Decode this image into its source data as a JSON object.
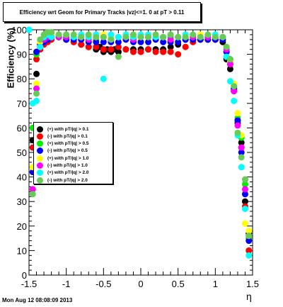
{
  "chart_data": {
    "type": "scatter",
    "title": "Efficiency wrt Geom for Primary Tracks |vz|<=1. 0 at pT > 0.11",
    "xlabel": "η",
    "ylabel": "Efficiency (%)",
    "xlim": [
      -1.5,
      1.5
    ],
    "ylim": [
      0,
      100
    ],
    "x_ticks": [
      -1.5,
      -1,
      -0.5,
      0,
      0.5,
      1,
      1.5
    ],
    "y_ticks": [
      0,
      10,
      20,
      30,
      40,
      50,
      60,
      70,
      80,
      90,
      100
    ],
    "legend_position": "middle-left",
    "series": [
      {
        "name": "(+) with pT/|q| > 0.1",
        "color": "#000000",
        "x": [
          -1.45,
          -1.4,
          -1.35,
          -1.3,
          -1.25,
          -1.2,
          -1.1,
          -1.0,
          -0.9,
          -0.8,
          -0.7,
          -0.6,
          -0.55,
          -0.5,
          -0.45,
          -0.4,
          -0.35,
          -0.3,
          -0.2,
          -0.1,
          0.0,
          0.1,
          0.2,
          0.3,
          0.4,
          0.5,
          0.6,
          0.7,
          0.8,
          0.9,
          1.0,
          1.1,
          1.15,
          1.2,
          1.25,
          1.3,
          1.35,
          1.4,
          1.45
        ],
        "y": [
          55,
          82,
          94,
          96,
          97,
          98,
          97,
          96,
          95,
          94,
          93,
          92,
          93,
          91,
          92,
          91,
          92,
          91,
          92,
          92,
          92,
          92,
          92,
          92,
          93,
          94,
          96,
          96,
          96,
          96,
          96,
          95,
          88,
          84,
          75,
          62,
          54,
          30,
          17
        ]
      },
      {
        "name": "(-) with pT/|q| > 0.1",
        "color": "#ff0000",
        "x": [
          -1.45,
          -1.4,
          -1.35,
          -1.3,
          -1.25,
          -1.2,
          -1.1,
          -1.0,
          -0.9,
          -0.8,
          -0.7,
          -0.6,
          -0.5,
          -0.4,
          -0.3,
          -0.2,
          -0.1,
          0.0,
          0.1,
          0.2,
          0.3,
          0.4,
          0.5,
          0.6,
          0.7,
          0.8,
          0.9,
          1.0,
          1.1,
          1.15,
          1.2,
          1.25,
          1.3,
          1.35,
          1.4,
          1.45
        ],
        "y": [
          52,
          88,
          92,
          94,
          95,
          96,
          97,
          96,
          95,
          94,
          93,
          93,
          92,
          92,
          93,
          92,
          91,
          91,
          92,
          91,
          91,
          91,
          90,
          93,
          95,
          96,
          96,
          96,
          96,
          91,
          86,
          76,
          63,
          52,
          28,
          10
        ]
      },
      {
        "name": "(+) with pT/|q| > 0.5",
        "color": "#00ee00",
        "x": [
          -1.45,
          -1.4,
          -1.35,
          -1.3,
          -1.25,
          -1.2,
          -1.1,
          -1.0,
          -0.9,
          -0.8,
          -0.7,
          -0.6,
          -0.5,
          -0.4,
          -0.3,
          -0.2,
          -0.1,
          0.0,
          0.1,
          0.2,
          0.3,
          0.4,
          0.5,
          0.6,
          0.7,
          0.8,
          0.9,
          1.0,
          1.1,
          1.15,
          1.2,
          1.25,
          1.3,
          1.35,
          1.4,
          1.45
        ],
        "y": [
          60,
          90,
          95,
          97,
          98,
          98,
          98,
          97,
          97,
          97,
          97,
          96,
          97,
          96,
          97,
          97,
          97,
          97,
          97,
          97,
          97,
          97,
          97,
          97,
          97,
          97,
          97,
          97,
          97,
          93,
          88,
          77,
          64,
          56,
          37,
          15
        ]
      },
      {
        "name": "(-) with pT/|q| > 0.5",
        "color": "#0000ff",
        "x": [
          -1.45,
          -1.4,
          -1.35,
          -1.3,
          -1.25,
          -1.2,
          -1.1,
          -1.0,
          -0.9,
          -0.8,
          -0.7,
          -0.6,
          -0.5,
          -0.4,
          -0.3,
          -0.2,
          -0.1,
          0.0,
          0.1,
          0.2,
          0.3,
          0.4,
          0.5,
          0.6,
          0.7,
          0.8,
          0.9,
          1.0,
          1.1,
          1.15,
          1.2,
          1.25,
          1.3,
          1.35,
          1.4,
          1.45
        ],
        "y": [
          42,
          91,
          93,
          95,
          96,
          97,
          97,
          96,
          96,
          96,
          95,
          95,
          95,
          95,
          95,
          96,
          95,
          95,
          95,
          96,
          95,
          95,
          95,
          96,
          96,
          96,
          96,
          96,
          96,
          91,
          87,
          76,
          63,
          50,
          33,
          14
        ]
      },
      {
        "name": "(+) with pT/|q| > 1.0",
        "color": "#ffff00",
        "x": [
          -1.45,
          -1.4,
          -1.35,
          -1.3,
          -1.25,
          -1.2,
          -1.1,
          -1.0,
          -0.9,
          -0.8,
          -0.7,
          -0.6,
          -0.5,
          -0.4,
          -0.3,
          -0.2,
          -0.1,
          0.0,
          0.1,
          0.2,
          0.3,
          0.4,
          0.5,
          0.6,
          0.7,
          0.8,
          0.9,
          1.0,
          1.1,
          1.15,
          1.2,
          1.25,
          1.3,
          1.35,
          1.4,
          1.45
        ],
        "y": [
          44,
          78,
          95,
          97,
          98,
          98,
          98,
          98,
          98,
          97,
          98,
          97,
          98,
          97,
          97,
          98,
          98,
          97,
          97,
          98,
          97,
          98,
          97,
          98,
          97,
          98,
          97,
          98,
          97,
          93,
          87,
          78,
          66,
          57,
          21,
          18
        ]
      },
      {
        "name": "(-) with pT/|q| > 1.0",
        "color": "#ff00ff",
        "x": [
          -1.45,
          -1.4,
          -1.35,
          -1.3,
          -1.25,
          -1.2,
          -1.1,
          -1.0,
          -0.9,
          -0.8,
          -0.7,
          -0.6,
          -0.5,
          -0.4,
          -0.3,
          -0.2,
          -0.1,
          0.0,
          0.1,
          0.2,
          0.3,
          0.4,
          0.5,
          0.6,
          0.7,
          0.8,
          0.9,
          1.0,
          1.1,
          1.15,
          1.2,
          1.25,
          1.3,
          1.35,
          1.4,
          1.45
        ],
        "y": [
          35,
          76,
          93,
          96,
          97,
          97,
          97,
          97,
          97,
          97,
          96,
          97,
          97,
          96,
          97,
          97,
          96,
          97,
          97,
          97,
          97,
          96,
          97,
          97,
          97,
          97,
          97,
          97,
          97,
          92,
          86,
          75,
          61,
          52,
          35,
          16
        ]
      },
      {
        "name": "(+) with pT/|q| > 2.0",
        "color": "#00ffff",
        "x": [
          -1.5,
          -1.45,
          -1.4,
          -1.35,
          -1.3,
          -1.25,
          -1.2,
          -1.1,
          -1.0,
          -0.9,
          -0.8,
          -0.7,
          -0.6,
          -0.5,
          -0.4,
          -0.3,
          -0.2,
          -0.1,
          0.0,
          0.1,
          0.2,
          0.3,
          0.4,
          0.5,
          0.6,
          0.7,
          0.8,
          0.9,
          1.0,
          1.1,
          1.15,
          1.2,
          1.25,
          1.3,
          1.35,
          1.4,
          1.45
        ],
        "y": [
          100,
          70,
          71,
          93,
          97,
          98,
          97,
          98,
          98,
          97,
          98,
          97,
          98,
          80,
          98,
          97,
          98,
          97,
          98,
          98,
          97,
          97,
          98,
          97,
          98,
          98,
          97,
          98,
          98,
          97,
          89,
          79,
          71,
          57,
          44,
          27,
          8
        ]
      },
      {
        "name": "(-) with pT/|q| > 2.0",
        "color": "#66cc55",
        "x": [
          -1.45,
          -1.4,
          -1.35,
          -1.3,
          -1.25,
          -1.2,
          -1.1,
          -1.0,
          -0.9,
          -0.8,
          -0.7,
          -0.6,
          -0.5,
          -0.4,
          -0.3,
          -0.2,
          -0.1,
          0.0,
          0.1,
          0.2,
          0.3,
          0.4,
          0.5,
          0.6,
          0.7,
          0.8,
          0.9,
          1.0,
          1.1,
          1.15,
          1.2,
          1.25,
          1.3,
          1.35,
          1.4,
          1.45
        ],
        "y": [
          33,
          74,
          96,
          98,
          99,
          99,
          98,
          98,
          98,
          97,
          98,
          97,
          97,
          96,
          89,
          97,
          98,
          97,
          97,
          98,
          97,
          98,
          97,
          97,
          98,
          97,
          98,
          97,
          97,
          93,
          88,
          77,
          58,
          48,
          39,
          16
        ]
      }
    ]
  },
  "footer": {
    "timestamp": "Mon Aug 12 08:08:09 2013"
  }
}
